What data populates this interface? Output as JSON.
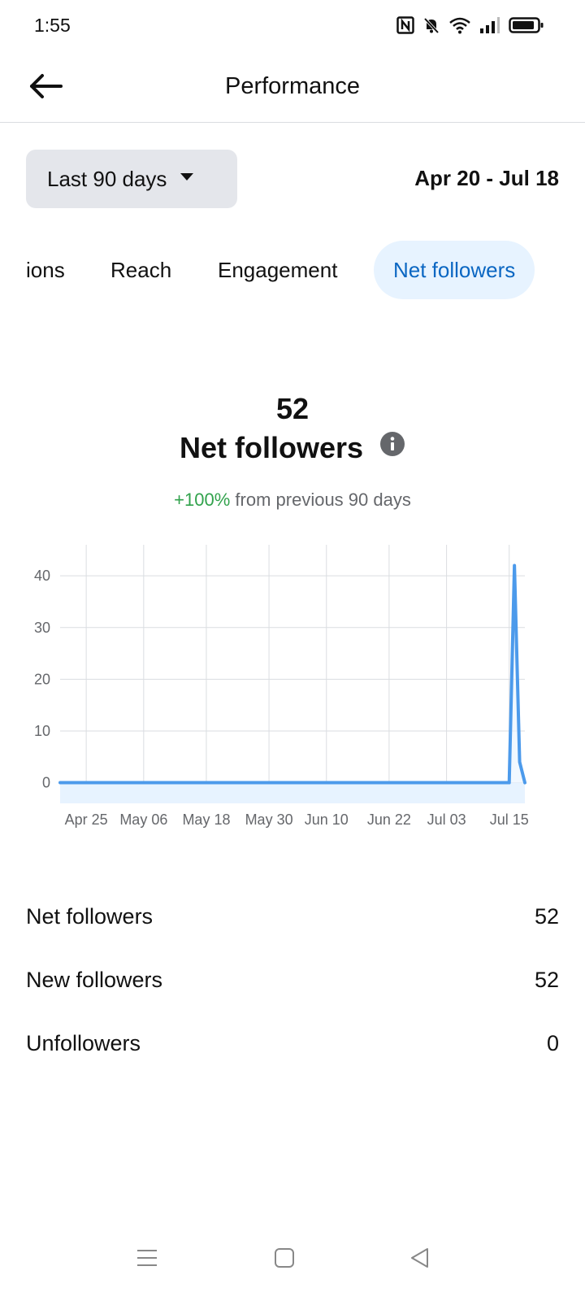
{
  "status_bar": {
    "time": "1:55",
    "icons": [
      "nfc-icon",
      "bell-muted-icon",
      "wifi-icon",
      "signal-icon",
      "battery-icon"
    ]
  },
  "header": {
    "title": "Performance",
    "back_icon": "arrow-left-icon"
  },
  "filter": {
    "range_label": "Last 90 days",
    "date_range": "Apr 20 - Jul 18"
  },
  "tabs": [
    {
      "label": "ions",
      "active": false
    },
    {
      "label": "Reach",
      "active": false
    },
    {
      "label": "Engagement",
      "active": false
    },
    {
      "label": "Net followers",
      "active": true
    }
  ],
  "metric": {
    "value": "52",
    "title": "Net followers",
    "change_pct": "+100%",
    "change_text": "from previous 90 days"
  },
  "chart_data": {
    "type": "area",
    "x_tick_labels": [
      "Apr 25",
      "May 06",
      "May 18",
      "May 30",
      "Jun 10",
      "Jun 22",
      "Jul 03",
      "Jul 15"
    ],
    "y_tick_labels": [
      "0",
      "10",
      "20",
      "30",
      "40"
    ],
    "ylim": [
      -4,
      46
    ],
    "x": [
      "Apr 20",
      "Jul 15",
      "Jul 16",
      "Jul 17",
      "Jul 18"
    ],
    "series": [
      {
        "values": [
          0,
          0,
          42,
          4,
          0
        ]
      }
    ],
    "grid": true,
    "colors": {
      "line": "#4c9aeb",
      "fill": "#e7f3ff",
      "grid": "#dadde1",
      "tick": "#65676b"
    }
  },
  "stats": [
    {
      "label": "Net followers",
      "value": "52"
    },
    {
      "label": "New followers",
      "value": "52"
    },
    {
      "label": "Unfollowers",
      "value": "0"
    }
  ],
  "nav": [
    "menu-icon",
    "home-square-icon",
    "back-triangle-icon"
  ]
}
